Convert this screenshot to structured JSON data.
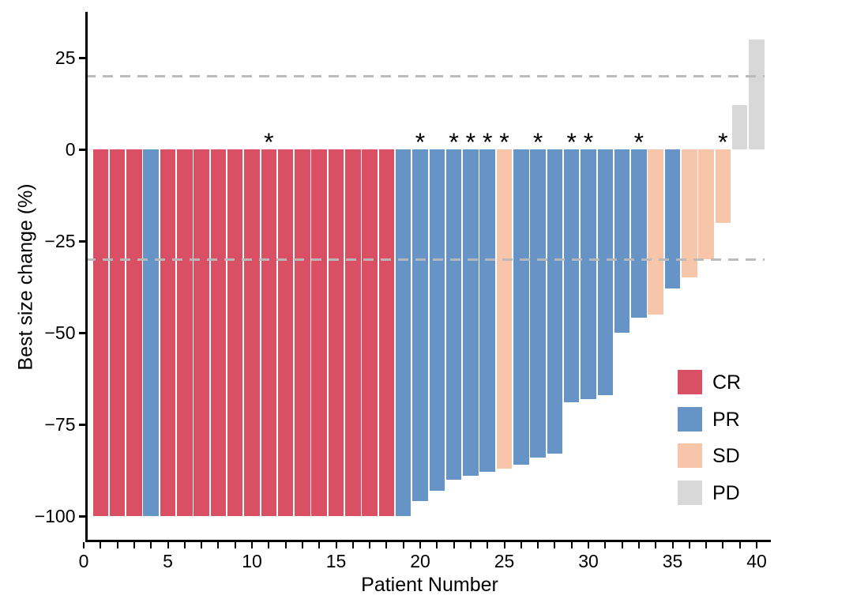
{
  "figure": {
    "background": "#ffffff"
  },
  "chart_data": {
    "type": "bar",
    "title": "",
    "xlabel": "Patient Number",
    "ylabel": "Best size change (%)",
    "xlim": [
      0,
      41
    ],
    "ylim": [
      -107,
      37
    ],
    "grid": false,
    "legend_position": "inside-bottom-right",
    "asterisk_symbol": "*",
    "y_ticks": [
      {
        "value": 25,
        "label": "25"
      },
      {
        "value": 0,
        "label": "0"
      },
      {
        "value": -25,
        "label": "−25"
      },
      {
        "value": -50,
        "label": "−50"
      },
      {
        "value": -75,
        "label": "−75"
      },
      {
        "value": -100,
        "label": "−100"
      }
    ],
    "x_major_ticks": [
      {
        "value": 0,
        "label": "0"
      },
      {
        "value": 5,
        "label": "5"
      },
      {
        "value": 10,
        "label": "10"
      },
      {
        "value": 15,
        "label": "15"
      },
      {
        "value": 20,
        "label": "20"
      },
      {
        "value": 25,
        "label": "25"
      },
      {
        "value": 30,
        "label": "30"
      },
      {
        "value": 35,
        "label": "35"
      },
      {
        "value": 40,
        "label": "40"
      }
    ],
    "x_minor_tick_every": 1,
    "reference_lines": [
      {
        "value": 20,
        "style": "dashed",
        "color": "#b9b9b9"
      },
      {
        "value": -30,
        "style": "dashed",
        "color": "#b9b9b9"
      }
    ],
    "legend": [
      {
        "label": "CR",
        "color": "#D94F64"
      },
      {
        "label": "PR",
        "color": "#6794C6"
      },
      {
        "label": "SD",
        "color": "#F7C5A9"
      },
      {
        "label": "PD",
        "color": "#D8D8D8"
      }
    ],
    "patients": [
      {
        "n": 1,
        "value": -100,
        "response": "CR",
        "asterisk": false
      },
      {
        "n": 2,
        "value": -100,
        "response": "CR",
        "asterisk": false
      },
      {
        "n": 3,
        "value": -100,
        "response": "CR",
        "asterisk": false
      },
      {
        "n": 4,
        "value": -100,
        "response": "PR",
        "asterisk": false
      },
      {
        "n": 5,
        "value": -100,
        "response": "CR",
        "asterisk": false
      },
      {
        "n": 6,
        "value": -100,
        "response": "CR",
        "asterisk": false
      },
      {
        "n": 7,
        "value": -100,
        "response": "CR",
        "asterisk": false
      },
      {
        "n": 8,
        "value": -100,
        "response": "CR",
        "asterisk": false
      },
      {
        "n": 9,
        "value": -100,
        "response": "CR",
        "asterisk": false
      },
      {
        "n": 10,
        "value": -100,
        "response": "CR",
        "asterisk": false
      },
      {
        "n": 11,
        "value": -100,
        "response": "CR",
        "asterisk": true
      },
      {
        "n": 12,
        "value": -100,
        "response": "CR",
        "asterisk": false
      },
      {
        "n": 13,
        "value": -100,
        "response": "CR",
        "asterisk": false
      },
      {
        "n": 14,
        "value": -100,
        "response": "CR",
        "asterisk": false
      },
      {
        "n": 15,
        "value": -100,
        "response": "CR",
        "asterisk": false
      },
      {
        "n": 16,
        "value": -100,
        "response": "CR",
        "asterisk": false
      },
      {
        "n": 17,
        "value": -100,
        "response": "CR",
        "asterisk": false
      },
      {
        "n": 18,
        "value": -100,
        "response": "CR",
        "asterisk": false
      },
      {
        "n": 19,
        "value": -100,
        "response": "PR",
        "asterisk": false
      },
      {
        "n": 20,
        "value": -96,
        "response": "PR",
        "asterisk": true
      },
      {
        "n": 21,
        "value": -93,
        "response": "PR",
        "asterisk": false
      },
      {
        "n": 22,
        "value": -90,
        "response": "PR",
        "asterisk": true
      },
      {
        "n": 23,
        "value": -89,
        "response": "PR",
        "asterisk": true
      },
      {
        "n": 24,
        "value": -88,
        "response": "PR",
        "asterisk": true
      },
      {
        "n": 25,
        "value": -87,
        "response": "SD",
        "asterisk": true
      },
      {
        "n": 26,
        "value": -86,
        "response": "PR",
        "asterisk": false
      },
      {
        "n": 27,
        "value": -84,
        "response": "PR",
        "asterisk": true
      },
      {
        "n": 28,
        "value": -83,
        "response": "PR",
        "asterisk": false
      },
      {
        "n": 29,
        "value": -69,
        "response": "PR",
        "asterisk": true
      },
      {
        "n": 30,
        "value": -68,
        "response": "PR",
        "asterisk": true
      },
      {
        "n": 31,
        "value": -67,
        "response": "PR",
        "asterisk": false
      },
      {
        "n": 32,
        "value": -50,
        "response": "PR",
        "asterisk": false
      },
      {
        "n": 33,
        "value": -46,
        "response": "PR",
        "asterisk": true
      },
      {
        "n": 34,
        "value": -45,
        "response": "SD",
        "asterisk": false
      },
      {
        "n": 35,
        "value": -38,
        "response": "PR",
        "asterisk": false
      },
      {
        "n": 36,
        "value": -35,
        "response": "SD",
        "asterisk": false
      },
      {
        "n": 37,
        "value": -30,
        "response": "SD",
        "asterisk": false
      },
      {
        "n": 38,
        "value": -20,
        "response": "SD",
        "asterisk": true
      },
      {
        "n": 39,
        "value": 12,
        "response": "PD",
        "asterisk": false
      },
      {
        "n": 40,
        "value": 30,
        "response": "PD",
        "asterisk": false
      }
    ]
  }
}
